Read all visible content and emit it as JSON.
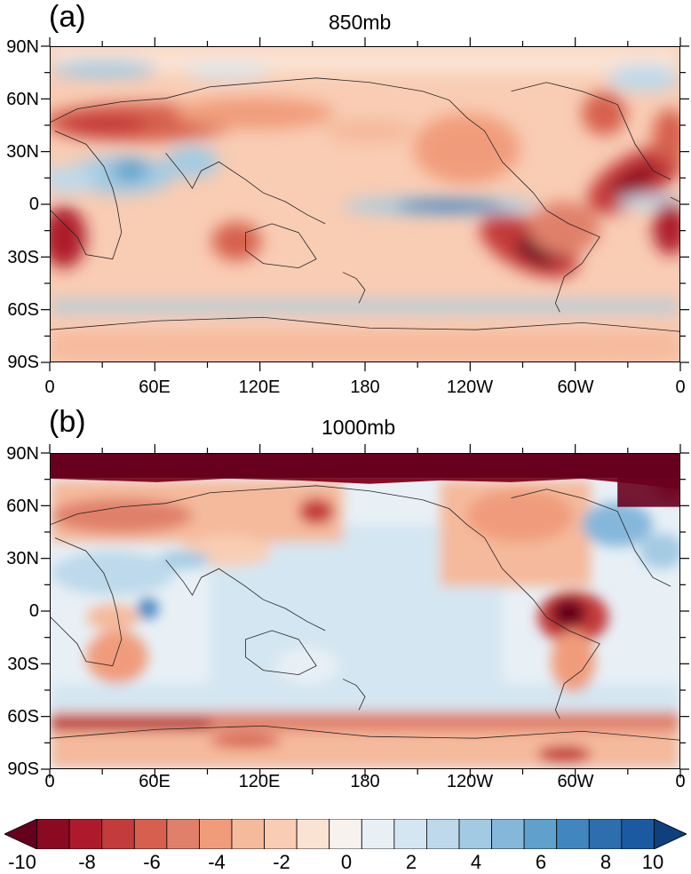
{
  "panels": [
    {
      "letter": "(a)",
      "title": "850mb"
    },
    {
      "letter": "(b)",
      "title": "1000mb"
    }
  ],
  "lat_labels": [
    "90N",
    "60N",
    "30N",
    "0",
    "30S",
    "60S",
    "90S"
  ],
  "lon_labels": [
    "0",
    "60E",
    "120E",
    "180",
    "120W",
    "60W",
    "0"
  ],
  "colorbar": {
    "colors": [
      "#67001f",
      "#8b0a22",
      "#ae1a2c",
      "#c43b3b",
      "#d6604d",
      "#e0806a",
      "#f09c7b",
      "#f5b99b",
      "#f9cdb4",
      "#fbe3d4",
      "#f7f2ee",
      "#e8f0f6",
      "#d4e6f1",
      "#bdd9eb",
      "#a3cae3",
      "#85b7da",
      "#5fa0cc",
      "#4286bf",
      "#2c6eae",
      "#1b5aa0",
      "#0f3f7c"
    ],
    "tick_labels": [
      "-10",
      "-8",
      "-6",
      "-4",
      "-2",
      "0",
      "2",
      "4",
      "6",
      "8",
      "10"
    ]
  }
}
